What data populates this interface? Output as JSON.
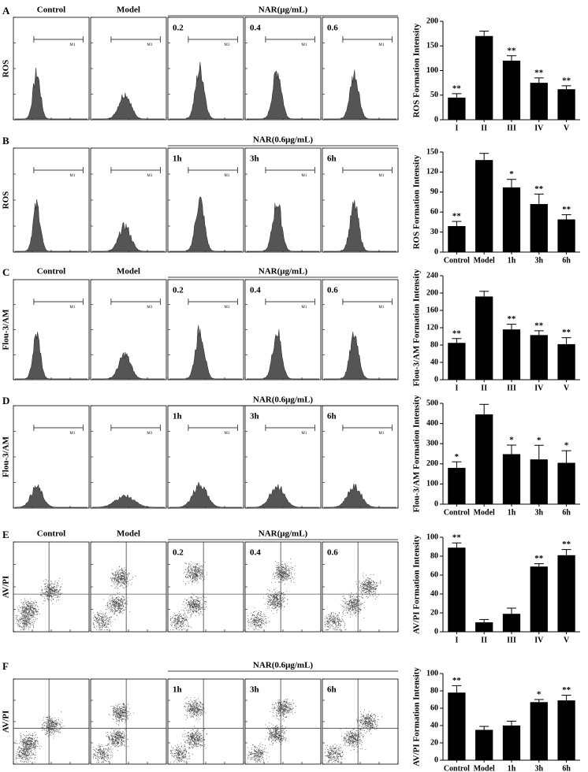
{
  "chart_data": [
    {
      "type": "bar",
      "panel_letter": "A",
      "row_label": "ROS",
      "panel_labels": [
        "Control",
        "Model",
        "0.2",
        "0.4",
        "0.6"
      ],
      "group_label": "NAR(μg/mL)",
      "marker_label": "M1",
      "flow_plot": "histogram",
      "ylabel": "ROS Formation Intensity",
      "categories": [
        "I",
        "II",
        "III",
        "IV",
        "V"
      ],
      "values": [
        45,
        170,
        120,
        75,
        62
      ],
      "errors": [
        8,
        10,
        10,
        10,
        7
      ],
      "significance": [
        "**",
        null,
        "**",
        "**",
        "**"
      ],
      "ylim": [
        0,
        200
      ],
      "yticks": [
        0,
        50,
        100,
        150,
        200
      ],
      "color": "#000000"
    },
    {
      "type": "bar",
      "panel_letter": "B",
      "row_label": "ROS",
      "panel_labels": [
        null,
        null,
        "1h",
        "3h",
        "6h"
      ],
      "group_label": "NAR(0.6μg/mL)",
      "marker_label": "M1",
      "flow_plot": "histogram",
      "ylabel": "ROS Formation Intensity",
      "categories": [
        "Control",
        "Model",
        "1h",
        "3h",
        "6h"
      ],
      "values": [
        39,
        138,
        97,
        72,
        49
      ],
      "errors": [
        7,
        10,
        12,
        15,
        7
      ],
      "significance": [
        "**",
        null,
        "*",
        "**",
        "**"
      ],
      "ylim": [
        0,
        150
      ],
      "yticks": [
        0,
        30,
        60,
        90,
        120,
        150
      ],
      "color": "#000000"
    },
    {
      "type": "bar",
      "panel_letter": "C",
      "row_label": "Flou-3/AM",
      "panel_labels": [
        "Control",
        "Model",
        "0.2",
        "0.4",
        "0.6"
      ],
      "group_label": "NAR(μg/mL)",
      "marker_label": "M1",
      "flow_plot": "histogram",
      "ylabel": "Flou-3/AM Formation Intensity",
      "categories": [
        "I",
        "II",
        "III",
        "IV",
        "V"
      ],
      "values": [
        85,
        192,
        116,
        103,
        82
      ],
      "errors": [
        10,
        12,
        12,
        10,
        15
      ],
      "significance": [
        "**",
        null,
        "**",
        "**",
        "**"
      ],
      "ylim": [
        0,
        240
      ],
      "yticks": [
        0,
        40,
        80,
        120,
        160,
        200,
        240
      ],
      "color": "#000000"
    },
    {
      "type": "bar",
      "panel_letter": "D",
      "row_label": "Flou-3/AM",
      "panel_labels": [
        null,
        null,
        "1h",
        "3h",
        "6h"
      ],
      "group_label": "NAR(0.6μg/mL)",
      "marker_label": "M1",
      "flow_plot": "histogram",
      "ylabel": "Flou-3/AM Formation Intensity",
      "categories": [
        "Control",
        "Model",
        "1h",
        "3h",
        "6h"
      ],
      "values": [
        180,
        445,
        248,
        222,
        205
      ],
      "errors": [
        30,
        50,
        45,
        70,
        60
      ],
      "significance": [
        "*",
        null,
        "*",
        "*",
        "*"
      ],
      "ylim": [
        0,
        500
      ],
      "yticks": [
        0,
        100,
        200,
        300,
        400,
        500
      ],
      "color": "#000000"
    },
    {
      "type": "bar",
      "panel_letter": "E",
      "row_label": "AV/PI",
      "panel_labels": [
        "Control",
        "Model",
        "0.2",
        "0.4",
        "0.6"
      ],
      "group_label": "NAR(μg/mL)",
      "flow_plot": "dot",
      "ylabel": "AV/PI Formation Intensity",
      "categories": [
        "I",
        "II",
        "III",
        "IV",
        "V"
      ],
      "values": [
        89,
        10,
        19,
        69,
        81
      ],
      "errors": [
        5,
        3,
        6,
        3,
        6
      ],
      "significance": [
        "**",
        null,
        null,
        "**",
        "**"
      ],
      "ylim": [
        0,
        100
      ],
      "yticks": [
        0,
        20,
        40,
        60,
        80,
        100
      ],
      "color": "#000000"
    },
    {
      "type": "bar",
      "panel_letter": "F",
      "row_label": "AV/PI",
      "panel_labels": [
        null,
        null,
        "1h",
        "3h",
        "6h"
      ],
      "group_label": "NAR(0.6μg/mL)",
      "flow_plot": "dot",
      "ylabel": "AV/PI Formation Intensity",
      "categories": [
        "Control",
        "Model",
        "1h",
        "3h",
        "6h"
      ],
      "values": [
        78,
        35,
        40,
        67,
        69
      ],
      "errors": [
        8,
        4,
        5,
        3,
        6
      ],
      "significance": [
        "**",
        null,
        null,
        "*",
        "**"
      ],
      "ylim": [
        0,
        100
      ],
      "yticks": [
        0,
        20,
        40,
        60,
        80,
        100
      ],
      "color": "#000000"
    }
  ]
}
